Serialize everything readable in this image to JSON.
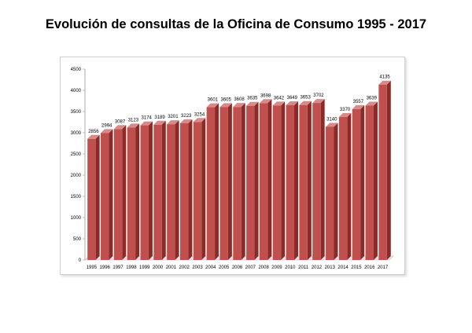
{
  "chart_data": {
    "type": "bar",
    "title": "Evolución de consultas de la Oficina de Consumo 1995 - 2017",
    "xlabel": "",
    "ylabel": "",
    "categories": [
      "1995",
      "1996",
      "1997",
      "1998",
      "1999",
      "2000",
      "2001",
      "2002",
      "2003",
      "2004",
      "2005",
      "2006",
      "2007",
      "2008",
      "2009",
      "2010",
      "2011",
      "2012",
      "2013",
      "2014",
      "2015",
      "2016",
      "2017"
    ],
    "values": [
      2856,
      2994,
      3087,
      3123,
      3174,
      3189,
      3201,
      3223,
      3254,
      3601,
      3605,
      3608,
      3635,
      3698,
      3642,
      3649,
      3653,
      3702,
      3140,
      3370,
      3557,
      3639,
      4135
    ],
    "ylim": [
      0,
      4500
    ],
    "yticks": [
      0,
      500,
      1000,
      1500,
      2000,
      2500,
      3000,
      3500,
      4000,
      4500
    ],
    "grid": false,
    "legend": "none",
    "colors": {
      "bar_front": "#c0504d",
      "bar_side": "#8c2a27",
      "bar_top": "#d98a88",
      "floor": "#e6e6e6"
    }
  }
}
